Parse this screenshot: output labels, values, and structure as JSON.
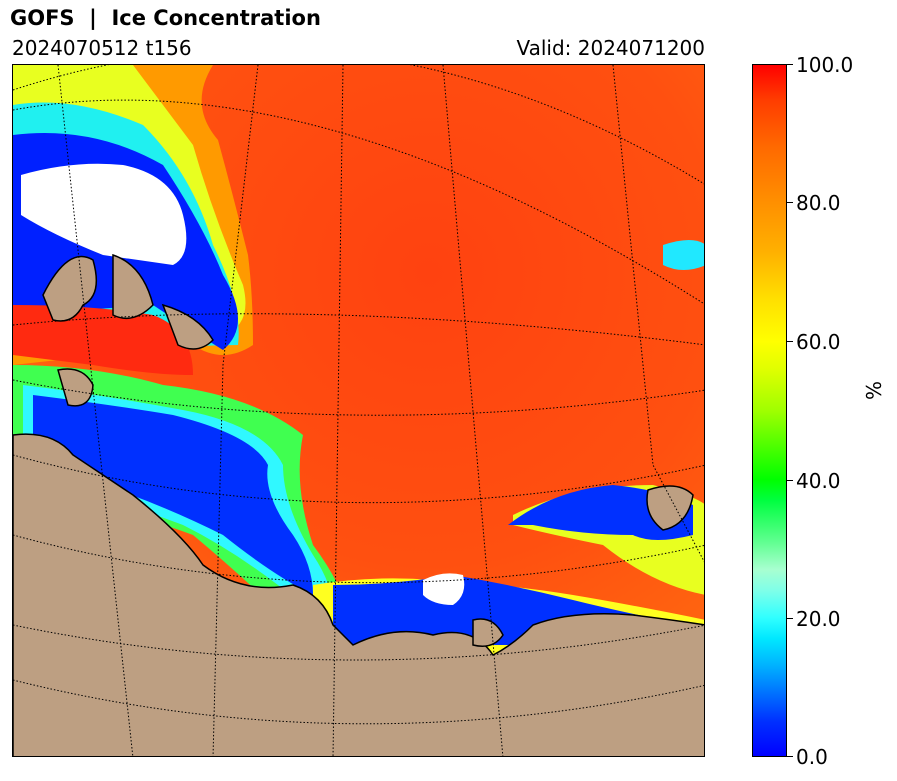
{
  "header": {
    "title": "GOFS  |  Ice Concentration",
    "run": "2024070512 t156",
    "valid": "Valid: 2024071200"
  },
  "colorbar": {
    "unit": "%",
    "ticks": [
      "100.0",
      "80.0",
      "60.0",
      "40.0",
      "20.0",
      "0.0"
    ],
    "range": [
      0,
      100
    ],
    "colors": [
      "#0000ff",
      "#00ffff",
      "#00ff00",
      "#ffff00",
      "#ff8c00",
      "#ff0000"
    ]
  },
  "map": {
    "land_color": "#bd9f82",
    "ice_high_color": "#ff4a10",
    "coastline_color": "#000000",
    "gridlines": "dotted"
  }
}
